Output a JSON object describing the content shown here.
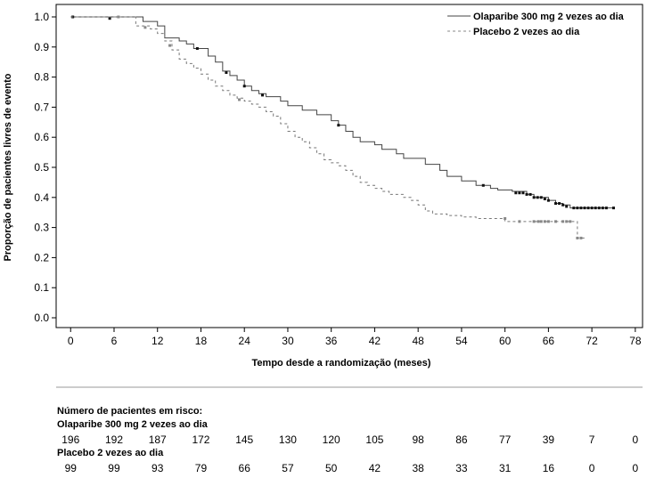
{
  "chart_data": {
    "type": "line",
    "title": "",
    "xlabel": "Tempo desde a randomização (meses)",
    "ylabel": "Proporção de pacientes livres de evento",
    "xlim": [
      -2,
      79
    ],
    "ylim": [
      0,
      1
    ],
    "x_ticks": [
      "0",
      "6",
      "12",
      "18",
      "24",
      "30",
      "36",
      "42",
      "48",
      "54",
      "60",
      "66",
      "72",
      "78"
    ],
    "y_ticks": [
      "0.0",
      "0.1",
      "0.2",
      "0.3",
      "0.4",
      "0.5",
      "0.6",
      "0.7",
      "0.8",
      "0.9",
      "1.0"
    ],
    "grid": false,
    "legend_position": "top-right",
    "series": [
      {
        "name": "Olaparibe 300 mg 2 vezes ao dia",
        "color": "#444444",
        "line_style": "solid",
        "steps": [
          [
            0,
            1.0
          ],
          [
            6,
            1.0
          ],
          [
            10,
            0.985
          ],
          [
            12,
            0.97
          ],
          [
            13,
            0.93
          ],
          [
            15,
            0.92
          ],
          [
            16,
            0.91
          ],
          [
            17,
            0.895
          ],
          [
            19,
            0.87
          ],
          [
            20,
            0.85
          ],
          [
            21,
            0.82
          ],
          [
            22,
            0.805
          ],
          [
            23,
            0.79
          ],
          [
            24,
            0.77
          ],
          [
            25,
            0.755
          ],
          [
            26,
            0.745
          ],
          [
            27,
            0.735
          ],
          [
            29,
            0.72
          ],
          [
            30,
            0.705
          ],
          [
            32,
            0.69
          ],
          [
            34,
            0.675
          ],
          [
            36,
            0.655
          ],
          [
            37,
            0.64
          ],
          [
            38,
            0.62
          ],
          [
            39,
            0.6
          ],
          [
            40,
            0.585
          ],
          [
            42,
            0.575
          ],
          [
            43,
            0.56
          ],
          [
            45,
            0.545
          ],
          [
            46,
            0.53
          ],
          [
            49,
            0.51
          ],
          [
            51,
            0.49
          ],
          [
            52,
            0.47
          ],
          [
            54,
            0.455
          ],
          [
            56,
            0.44
          ],
          [
            58,
            0.43
          ],
          [
            59,
            0.425
          ],
          [
            61,
            0.42
          ],
          [
            63,
            0.41
          ],
          [
            64,
            0.4
          ],
          [
            66,
            0.39
          ],
          [
            67,
            0.38
          ],
          [
            68,
            0.375
          ],
          [
            69,
            0.365
          ],
          [
            75,
            0.365
          ]
        ],
        "censored": [
          [
            0.3,
            1.0
          ],
          [
            5.4,
            0.995
          ],
          [
            17.5,
            0.895
          ],
          [
            21.5,
            0.815
          ],
          [
            24,
            0.77
          ],
          [
            26.5,
            0.74
          ],
          [
            37,
            0.64
          ],
          [
            57,
            0.44
          ],
          [
            61.5,
            0.415
          ],
          [
            62,
            0.415
          ],
          [
            62.5,
            0.415
          ],
          [
            63,
            0.41
          ],
          [
            63.5,
            0.41
          ],
          [
            64,
            0.4
          ],
          [
            64.5,
            0.4
          ],
          [
            65,
            0.4
          ],
          [
            65.5,
            0.395
          ],
          [
            66,
            0.39
          ],
          [
            67,
            0.38
          ],
          [
            67.5,
            0.38
          ],
          [
            68,
            0.375
          ],
          [
            68.5,
            0.37
          ],
          [
            69.5,
            0.365
          ],
          [
            70,
            0.365
          ],
          [
            70.5,
            0.365
          ],
          [
            71,
            0.365
          ],
          [
            71.5,
            0.365
          ],
          [
            72,
            0.365
          ],
          [
            72.5,
            0.365
          ],
          [
            73,
            0.365
          ],
          [
            73.5,
            0.365
          ],
          [
            74,
            0.365
          ],
          [
            75,
            0.365
          ]
        ]
      },
      {
        "name": "Placebo 2 vezes ao dia",
        "color": "#777777",
        "line_style": "dashed",
        "steps": [
          [
            0,
            1.0
          ],
          [
            8,
            1.0
          ],
          [
            9,
            0.97
          ],
          [
            11,
            0.96
          ],
          [
            12,
            0.945
          ],
          [
            13,
            0.92
          ],
          [
            14,
            0.89
          ],
          [
            15,
            0.86
          ],
          [
            16,
            0.845
          ],
          [
            17,
            0.83
          ],
          [
            18,
            0.81
          ],
          [
            19,
            0.79
          ],
          [
            20,
            0.77
          ],
          [
            21,
            0.755
          ],
          [
            22,
            0.74
          ],
          [
            23,
            0.73
          ],
          [
            24,
            0.72
          ],
          [
            25,
            0.71
          ],
          [
            26,
            0.7
          ],
          [
            27,
            0.685
          ],
          [
            28,
            0.67
          ],
          [
            29,
            0.645
          ],
          [
            30,
            0.62
          ],
          [
            31,
            0.6
          ],
          [
            32,
            0.585
          ],
          [
            33,
            0.565
          ],
          [
            34,
            0.545
          ],
          [
            35,
            0.525
          ],
          [
            36,
            0.515
          ],
          [
            37,
            0.505
          ],
          [
            38,
            0.49
          ],
          [
            39,
            0.47
          ],
          [
            40,
            0.45
          ],
          [
            41,
            0.44
          ],
          [
            42,
            0.43
          ],
          [
            43,
            0.42
          ],
          [
            44,
            0.41
          ],
          [
            46,
            0.4
          ],
          [
            47,
            0.39
          ],
          [
            48,
            0.375
          ],
          [
            49,
            0.355
          ],
          [
            50,
            0.345
          ],
          [
            52,
            0.34
          ],
          [
            54,
            0.335
          ],
          [
            56,
            0.33
          ],
          [
            60,
            0.32
          ],
          [
            70,
            0.265
          ],
          [
            71,
            0.265
          ]
        ],
        "censored": [
          [
            6.6,
            1.0
          ],
          [
            10.3,
            0.965
          ],
          [
            13.7,
            0.905
          ],
          [
            23.3,
            0.725
          ],
          [
            60,
            0.33
          ],
          [
            62,
            0.32
          ],
          [
            64,
            0.32
          ],
          [
            64.6,
            0.32
          ],
          [
            65,
            0.32
          ],
          [
            65.5,
            0.32
          ],
          [
            66,
            0.32
          ],
          [
            67,
            0.32
          ],
          [
            68,
            0.32
          ],
          [
            68.5,
            0.32
          ],
          [
            69,
            0.32
          ],
          [
            70,
            0.265
          ],
          [
            70.5,
            0.265
          ]
        ]
      }
    ],
    "risk_table": {
      "title": "Número de pacientes em risco:",
      "times": [
        0,
        6,
        12,
        18,
        24,
        30,
        36,
        42,
        48,
        54,
        60,
        66,
        72,
        78
      ],
      "rows": [
        {
          "label": "Olaparibe 300 mg 2 vezes ao dia",
          "values": [
            "196",
            "192",
            "187",
            "172",
            "145",
            "130",
            "120",
            "105",
            "98",
            "86",
            "77",
            "39",
            "7",
            "0"
          ]
        },
        {
          "label": "Placebo 2 vezes ao dia",
          "values": [
            "99",
            "99",
            "93",
            "79",
            "66",
            "57",
            "50",
            "42",
            "38",
            "33",
            "31",
            "16",
            "0",
            "0"
          ]
        }
      ]
    }
  }
}
